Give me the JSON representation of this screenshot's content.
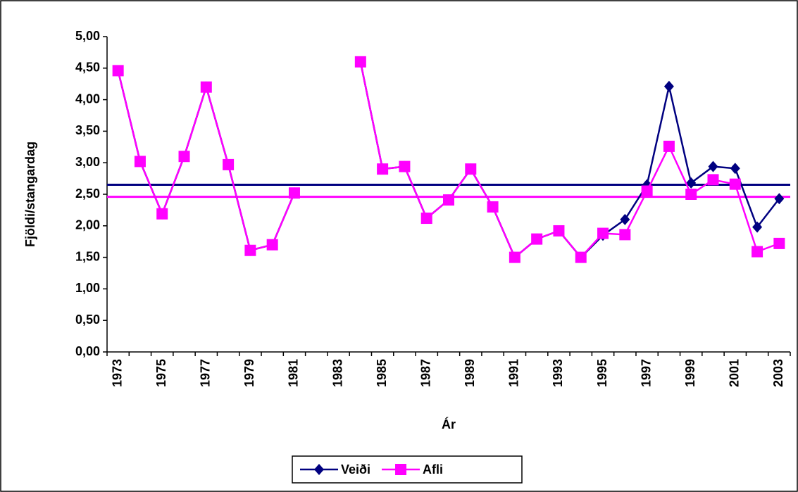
{
  "chart_data": {
    "type": "line",
    "categories": [
      "1973",
      null,
      "1975",
      null,
      "1977",
      null,
      "1979",
      null,
      "1981",
      null,
      "1983",
      null,
      "1985",
      null,
      "1987",
      null,
      "1989",
      null,
      "1991",
      null,
      "1993",
      null,
      "1995",
      null,
      "1997",
      null,
      "1999",
      null,
      "2001",
      null,
      "2003"
    ],
    "series": [
      {
        "name": "Veiði",
        "color": "#000080",
        "marker": "diamond",
        "values": [
          4.46,
          3.02,
          2.19,
          3.1,
          4.2,
          2.97,
          1.61,
          1.7,
          2.52,
          null,
          null,
          4.6,
          2.9,
          2.94,
          2.12,
          2.41,
          2.9,
          2.3,
          1.5,
          1.79,
          1.92,
          1.5,
          1.85,
          2.1,
          2.65,
          4.21,
          2.68,
          2.94,
          2.91,
          1.98,
          2.43
        ]
      },
      {
        "name": "Afli",
        "color": "#ff00ff",
        "marker": "square",
        "values": [
          4.46,
          3.02,
          2.19,
          3.1,
          4.2,
          2.97,
          1.61,
          1.7,
          2.52,
          null,
          null,
          4.6,
          2.9,
          2.94,
          2.12,
          2.41,
          2.9,
          2.3,
          1.5,
          1.79,
          1.92,
          1.5,
          1.88,
          1.86,
          2.55,
          3.26,
          2.5,
          2.73,
          2.66,
          1.59,
          1.72
        ]
      }
    ],
    "reference_lines": [
      {
        "value": 2.65,
        "color": "#000080"
      },
      {
        "value": 2.46,
        "color": "#ff00ff"
      }
    ],
    "x_label": "Ár",
    "y_label": "Fjöldi/stangardag",
    "ylim": [
      0,
      5
    ],
    "yticks": [
      {
        "value": 0,
        "label": "0,00"
      },
      {
        "value": 0.5,
        "label": "0,50"
      },
      {
        "value": 1,
        "label": "1,00"
      },
      {
        "value": 1.5,
        "label": "1,50"
      },
      {
        "value": 2,
        "label": "2,00"
      },
      {
        "value": 2.5,
        "label": "2,50"
      },
      {
        "value": 3,
        "label": "3,00"
      },
      {
        "value": 3.5,
        "label": "3,50"
      },
      {
        "value": 4,
        "label": "4,00"
      },
      {
        "value": 4.5,
        "label": "4,50"
      },
      {
        "value": 5,
        "label": "5,00"
      }
    ],
    "grid": false,
    "legend": "bottom"
  }
}
